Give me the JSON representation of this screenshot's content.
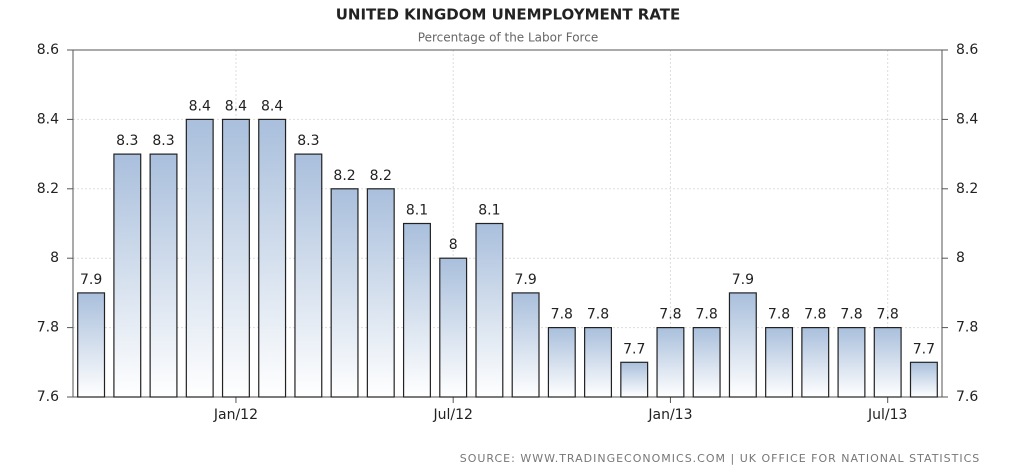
{
  "chart_data": {
    "type": "bar",
    "title": "UNITED KINGDOM UNEMPLOYMENT RATE",
    "subtitle": "Percentage of the Labor Force",
    "source": "SOURCE: WWW.TRADINGECONOMICS.COM | UK OFFICE FOR NATIONAL STATISTICS",
    "categories": [
      null,
      null,
      null,
      null,
      "Jan/12",
      null,
      null,
      null,
      null,
      null,
      "Jul/12",
      null,
      null,
      null,
      null,
      null,
      "Jan/13",
      null,
      null,
      null,
      null,
      null,
      "Jul/13",
      null
    ],
    "values": [
      7.9,
      8.3,
      8.3,
      8.4,
      8.4,
      8.4,
      8.3,
      8.2,
      8.2,
      8.1,
      8,
      8.1,
      7.9,
      7.8,
      7.8,
      7.7,
      7.8,
      7.8,
      7.9,
      7.8,
      7.8,
      7.8,
      7.8,
      7.7
    ],
    "color": "#a9bfdc",
    "ylim": [
      7.6,
      8.6
    ],
    "yticks": [
      7.6,
      7.8,
      8,
      8.2,
      8.4,
      8.6
    ],
    "grid": true
  }
}
